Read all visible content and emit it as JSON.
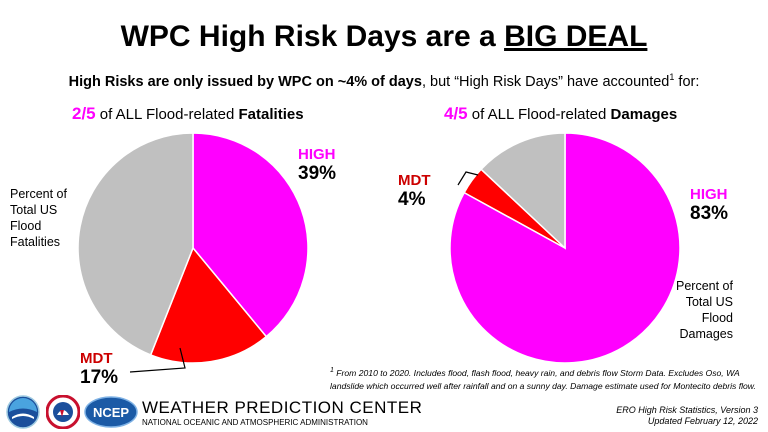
{
  "title": {
    "prefix": "WPC High Risk Days are a ",
    "emphasis": "BIG DEAL"
  },
  "subtitle": {
    "bold": "High Risks are only issued by WPC on ~4% of days",
    "rest": ", but “High Risk Days” have accounted",
    "sup": "1",
    "end": " for:"
  },
  "chart_data": [
    {
      "type": "pie",
      "title_fraction": "2/5",
      "title_text": " of ALL Flood-related ",
      "title_bold": "Fatalities",
      "slices": [
        {
          "name": "HIGH",
          "value": 39,
          "label": "39%",
          "color": "#ff00ff"
        },
        {
          "name": "MDT",
          "value": 17,
          "label": "17%",
          "color": "#ff0000"
        },
        {
          "name": "",
          "value": 44,
          "label": "",
          "color": "#c0c0c0"
        }
      ],
      "note": [
        "Percent of",
        "Total US",
        "Flood",
        "Fatalities"
      ]
    },
    {
      "type": "pie",
      "title_fraction": "4/5",
      "title_text": " of ALL Flood-related ",
      "title_bold": "Damages",
      "slices": [
        {
          "name": "HIGH",
          "value": 83,
          "label": "83%",
          "color": "#ff00ff"
        },
        {
          "name": "MDT",
          "value": 4,
          "label": "4%",
          "color": "#ff0000"
        },
        {
          "name": "",
          "value": 13,
          "label": "",
          "color": "#c0c0c0"
        }
      ],
      "note": [
        "Percent of",
        "Total US",
        "Flood",
        "Damages"
      ]
    }
  ],
  "colors": {
    "high": "#ff00ff",
    "mdt": "#ff0000",
    "mdt_label": "#cc0000",
    "other": "#c0c0c0"
  },
  "footnote": {
    "sup": "1",
    "text": " From 2010 to 2020. Includes flood, flash flood, heavy rain, and debris flow Storm Data. Excludes Oso, WA landslide which occurred well after rainfall and on a sunny day. Damage estimate used for Montecito debris flow."
  },
  "footer": {
    "center": "WEATHER PREDICTION CENTER",
    "agency": "NATIONAL OCEANIC AND ATMOSPHERIC ADMINISTRATION",
    "logos": [
      "noaa-logo",
      "nws-logo",
      "ncep-logo"
    ],
    "ncep_text": "NCEP",
    "version_line1": "ERO High Risk Statistics, Version 3",
    "version_line2": "Updated February 12, 2022"
  }
}
